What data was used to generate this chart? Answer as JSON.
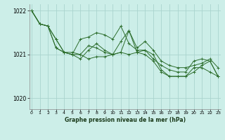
{
  "title": "Graphe pression niveau de la mer (hPa)",
  "background_color": "#cceee8",
  "grid_color": "#aad4ce",
  "line_color": "#2d6e2d",
  "marker_color": "#2d6e2d",
  "ylim": [
    1019.75,
    1022.15
  ],
  "xlim": [
    -0.3,
    23.3
  ],
  "yticks": [
    1020,
    1021,
    1022
  ],
  "xticks": [
    0,
    1,
    2,
    3,
    4,
    5,
    6,
    7,
    8,
    9,
    10,
    11,
    12,
    13,
    14,
    15,
    16,
    17,
    18,
    19,
    20,
    21,
    22,
    23
  ],
  "series": [
    [
      1022.0,
      1021.7,
      1021.65,
      1021.35,
      1021.05,
      1021.05,
      1021.0,
      1021.2,
      1021.15,
      1021.05,
      1021.0,
      1021.3,
      1021.55,
      1021.15,
      1021.3,
      1021.1,
      1020.85,
      1020.75,
      1020.7,
      1020.7,
      1020.75,
      1020.8,
      1020.9,
      1020.7
    ],
    [
      1022.0,
      1021.7,
      1021.65,
      1021.15,
      1021.05,
      1021.0,
      1020.9,
      1021.1,
      1021.25,
      1021.1,
      1021.0,
      1021.05,
      1021.0,
      1021.05,
      1021.1,
      1021.0,
      1020.65,
      1020.5,
      1020.5,
      1020.5,
      1020.7,
      1020.7,
      1020.6,
      1020.5
    ],
    [
      1022.0,
      1021.7,
      1021.65,
      1021.15,
      1021.05,
      1021.0,
      1021.35,
      1021.4,
      1021.5,
      1021.45,
      1021.35,
      1021.65,
      1021.25,
      1021.1,
      1021.1,
      1020.9,
      1020.75,
      1020.65,
      1020.6,
      1020.6,
      1020.85,
      1020.9,
      1020.85,
      1020.5
    ],
    [
      1022.0,
      1021.7,
      1021.65,
      1021.35,
      1021.05,
      1021.0,
      1021.0,
      1020.9,
      1020.95,
      1020.95,
      1021.0,
      1021.05,
      1021.55,
      1021.05,
      1021.0,
      1020.85,
      1020.6,
      1020.5,
      1020.5,
      1020.5,
      1020.6,
      1020.75,
      1020.85,
      1020.5
    ]
  ]
}
